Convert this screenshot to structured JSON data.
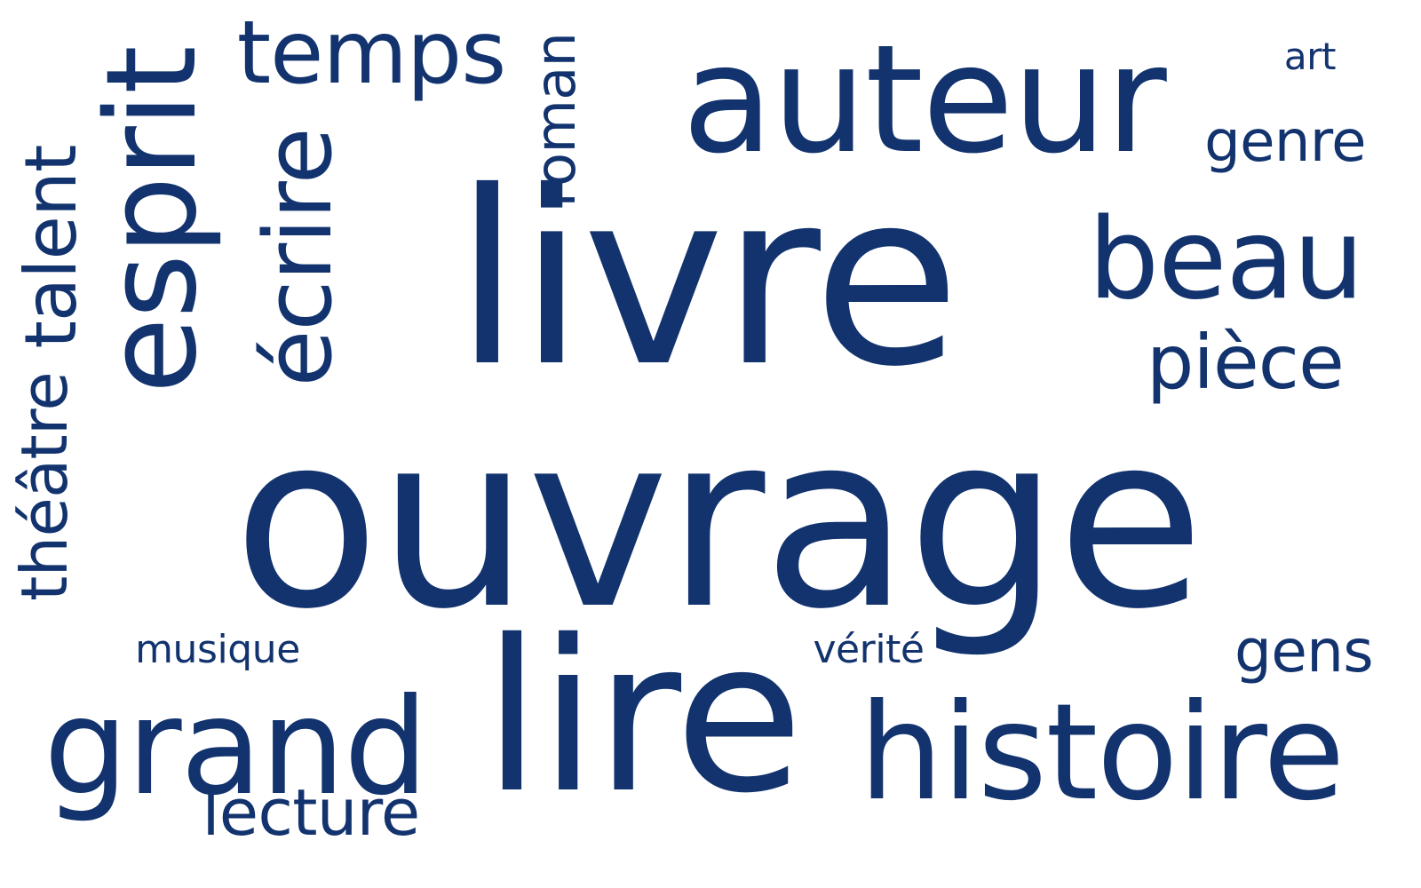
{
  "cloud": {
    "text_color": "#12336e",
    "background": "#ffffff",
    "words": {
      "ouvrage": "ouvrage",
      "livre": "livre",
      "auteur": "auteur",
      "lire": "lire",
      "histoire": "histoire",
      "grand": "grand",
      "esprit": "esprit",
      "temps": "temps",
      "ecrire": "écrire",
      "beau": "beau",
      "piece": "pièce",
      "roman": "roman",
      "talent": "talent",
      "theatre": "théâtre",
      "genre": "genre",
      "gens": "gens",
      "lecture": "lecture",
      "musique": "musique",
      "verite": "vérité",
      "art": "art"
    }
  }
}
